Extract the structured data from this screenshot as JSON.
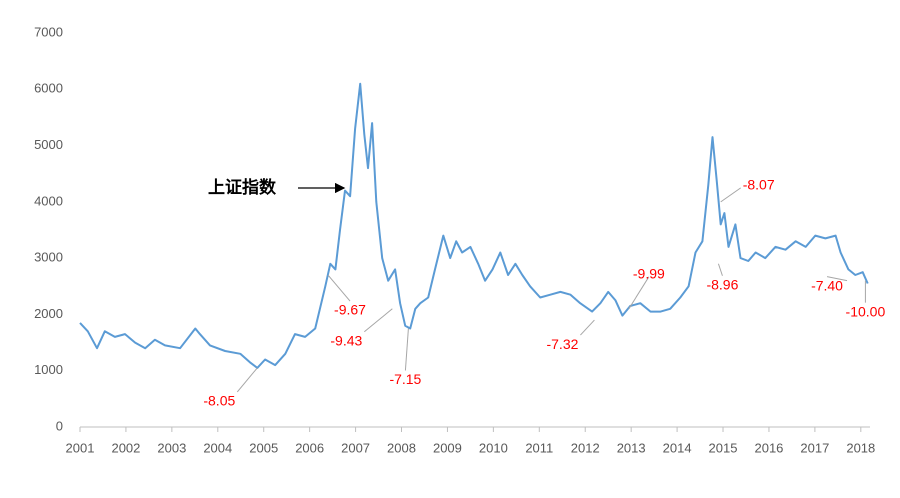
{
  "chart_data": {
    "type": "line",
    "x": [
      2001.0,
      2001.17,
      2001.37,
      2001.54,
      2001.76,
      2001.98,
      2002.2,
      2002.42,
      2002.63,
      2002.85,
      2003.18,
      2003.51,
      2003.61,
      2003.83,
      2004.16,
      2004.49,
      2004.7,
      2004.86,
      2005.03,
      2005.25,
      2005.47,
      2005.68,
      2005.9,
      2006.12,
      2006.34,
      2006.45,
      2006.56,
      2006.66,
      2006.77,
      2006.88,
      2006.99,
      2007.1,
      2007.19,
      2007.27,
      2007.36,
      2007.45,
      2007.58,
      2007.71,
      2007.86,
      2007.97,
      2008.08,
      2008.19,
      2008.3,
      2008.41,
      2008.58,
      2008.73,
      2008.91,
      2009.06,
      2009.19,
      2009.32,
      2009.5,
      2009.67,
      2009.82,
      2009.98,
      2010.15,
      2010.32,
      2010.48,
      2010.63,
      2010.8,
      2011.02,
      2011.24,
      2011.46,
      2011.68,
      2011.89,
      2012.15,
      2012.33,
      2012.5,
      2012.66,
      2012.81,
      2012.98,
      2013.2,
      2013.42,
      2013.64,
      2013.85,
      2014.07,
      2014.25,
      2014.4,
      2014.55,
      2014.68,
      2014.77,
      2014.86,
      2014.95,
      2015.03,
      2015.12,
      2015.27,
      2015.38,
      2015.55,
      2015.71,
      2015.92,
      2016.14,
      2016.36,
      2016.58,
      2016.8,
      2017.01,
      2017.23,
      2017.45,
      2017.56,
      2017.73,
      2017.88,
      2018.04,
      2018.15
    ],
    "series": [
      {
        "name": "上证指数",
        "color": "#5b9bd5",
        "values": [
          1850,
          1700,
          1400,
          1700,
          1600,
          1650,
          1500,
          1400,
          1550,
          1450,
          1400,
          1750,
          1650,
          1450,
          1350,
          1300,
          1150,
          1050,
          1200,
          1100,
          1300,
          1650,
          1600,
          1750,
          2500,
          2900,
          2800,
          3500,
          4200,
          4100,
          5300,
          6100,
          5200,
          4600,
          5400,
          4000,
          3000,
          2600,
          2800,
          2200,
          1800,
          1750,
          2100,
          2200,
          2300,
          2800,
          3400,
          3000,
          3300,
          3100,
          3200,
          2900,
          2600,
          2800,
          3100,
          2700,
          2900,
          2700,
          2500,
          2300,
          2350,
          2400,
          2350,
          2200,
          2050,
          2200,
          2400,
          2250,
          1980,
          2150,
          2200,
          2050,
          2050,
          2100,
          2300,
          2500,
          3100,
          3300,
          4300,
          5150,
          4400,
          3600,
          3800,
          3200,
          3600,
          3000,
          2950,
          3100,
          3000,
          3200,
          3150,
          3300,
          3200,
          3400,
          3350,
          3400,
          3100,
          2800,
          2700,
          2750,
          2550
        ]
      }
    ],
    "xlim": [
      2001,
      2018.2
    ],
    "xticks": [
      2001,
      2002,
      2003,
      2004,
      2005,
      2006,
      2007,
      2008,
      2009,
      2010,
      2011,
      2012,
      2013,
      2014,
      2015,
      2016,
      2017,
      2018
    ],
    "ylim": [
      0,
      7000
    ],
    "yticks": [
      0,
      1000,
      2000,
      3000,
      4000,
      5000,
      6000,
      7000
    ],
    "grid": false,
    "annotations": [
      {
        "text": "-8.05",
        "x": 2004.86,
        "y": 1050
      },
      {
        "text": "-9.67",
        "x": 2006.4,
        "y": 2700
      },
      {
        "text": "-9.43",
        "x": 2007.8,
        "y": 2100
      },
      {
        "text": "-7.15",
        "x": 2008.15,
        "y": 1750
      },
      {
        "text": "-7.32",
        "x": 2012.2,
        "y": 1900
      },
      {
        "text": "-9.99",
        "x": 2012.95,
        "y": 2100
      },
      {
        "text": "-8.07",
        "x": 2014.95,
        "y": 4000
      },
      {
        "text": "-8.96",
        "x": 2014.9,
        "y": 2900
      },
      {
        "text": "-7.40",
        "x": 2017.7,
        "y": 2600
      },
      {
        "text": "-10.00",
        "x": 2018.1,
        "y": 2600
      }
    ]
  }
}
